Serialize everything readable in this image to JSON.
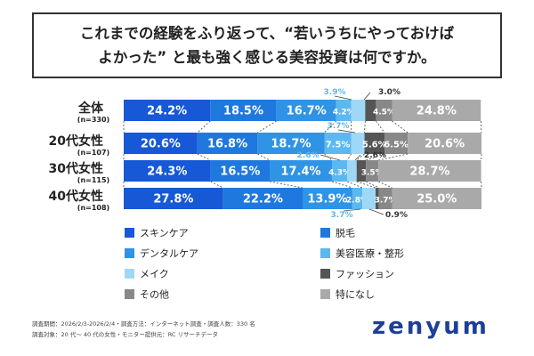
{
  "title": {
    "line1": "これまでの経験をふり返って、“若いうちにやっておけば",
    "line2": "よかった” と最も強く感じる美容投資は何ですか。"
  },
  "chart_data": {
    "type": "bar",
    "orientation": "horizontal",
    "stacked": true,
    "xlim": [
      0,
      100
    ],
    "unit": "%",
    "categories": [
      {
        "label": "全体",
        "n": "(n=330)"
      },
      {
        "label": "20代女性",
        "n": "(n=107)"
      },
      {
        "label": "30代女性",
        "n": "(n=115)"
      },
      {
        "label": "40代女性",
        "n": "(n=108)"
      }
    ],
    "series": [
      {
        "name": "スキンケア",
        "color": "#1658d6",
        "text_color": "#ffffff",
        "values": [
          24.2,
          20.6,
          24.3,
          27.8
        ],
        "labels": [
          "24.2%",
          "20.6%",
          "24.3%",
          "27.8%"
        ]
      },
      {
        "name": "脱毛",
        "color": "#1f78de",
        "text_color": "#ffffff",
        "values": [
          18.5,
          16.8,
          16.5,
          22.2
        ],
        "labels": [
          "18.5%",
          "16.8%",
          "16.5%",
          "22.2%"
        ]
      },
      {
        "name": "デンタルケア",
        "color": "#2f93e6",
        "text_color": "#ffffff",
        "values": [
          16.7,
          18.7,
          17.4,
          13.9
        ],
        "labels": [
          "16.7%",
          "18.7%",
          "17.4%",
          "13.9%"
        ]
      },
      {
        "name": "美容医療・整形",
        "color": "#5cb8f0",
        "text_color": "#ffffff",
        "values": [
          4.2,
          7.5,
          4.3,
          2.8
        ],
        "labels": [
          "4.2%",
          "7.5%",
          "4.3%",
          "2.8%"
        ]
      },
      {
        "name": "メイク",
        "color": "#9fd8f6",
        "text_color": "#5cb8f0",
        "values": [
          3.9,
          3.7,
          2.6,
          3.7
        ],
        "labels": [
          "3.9%",
          "3.7%",
          "2.6%",
          "3.7%"
        ]
      },
      {
        "name": "ファッション",
        "color": "#555555",
        "text_color": "#333333",
        "values": [
          3.0,
          5.6,
          2.6,
          0.9
        ],
        "labels": [
          "3.0%",
          "5.6%",
          "2.6%",
          "0.9%"
        ]
      },
      {
        "name": "その他",
        "color": "#888888",
        "text_color": "#333333",
        "values": [
          4.5,
          6.5,
          3.5,
          3.7
        ],
        "labels": [
          "4.5%",
          "6.5%",
          "3.5%",
          "3.7%"
        ]
      },
      {
        "name": "特になし",
        "color": "#a9a9a9",
        "text_color": "#ffffff",
        "values": [
          24.8,
          20.6,
          28.7,
          25.0
        ],
        "labels": [
          "24.8%",
          "20.6%",
          "28.7%",
          "25.0%"
        ]
      }
    ],
    "legend_position": "bottom",
    "legend_columns": [
      [
        "スキンケア",
        "デンタルケア",
        "メイク",
        "その他"
      ],
      [
        "脱毛",
        "美容医療・整形",
        "ファッション",
        "特になし"
      ]
    ],
    "connector_lines": "dashed"
  },
  "notes": {
    "line1": "調査期間：2026/2/3-2026/2/4・調査方法：インターネット調査・調査人数：330 名",
    "line2": "調査対象：20 代～ 40 代の女性・モニター提供元：RC リサーチデータ"
  },
  "brand": {
    "logo": "zenyum"
  }
}
